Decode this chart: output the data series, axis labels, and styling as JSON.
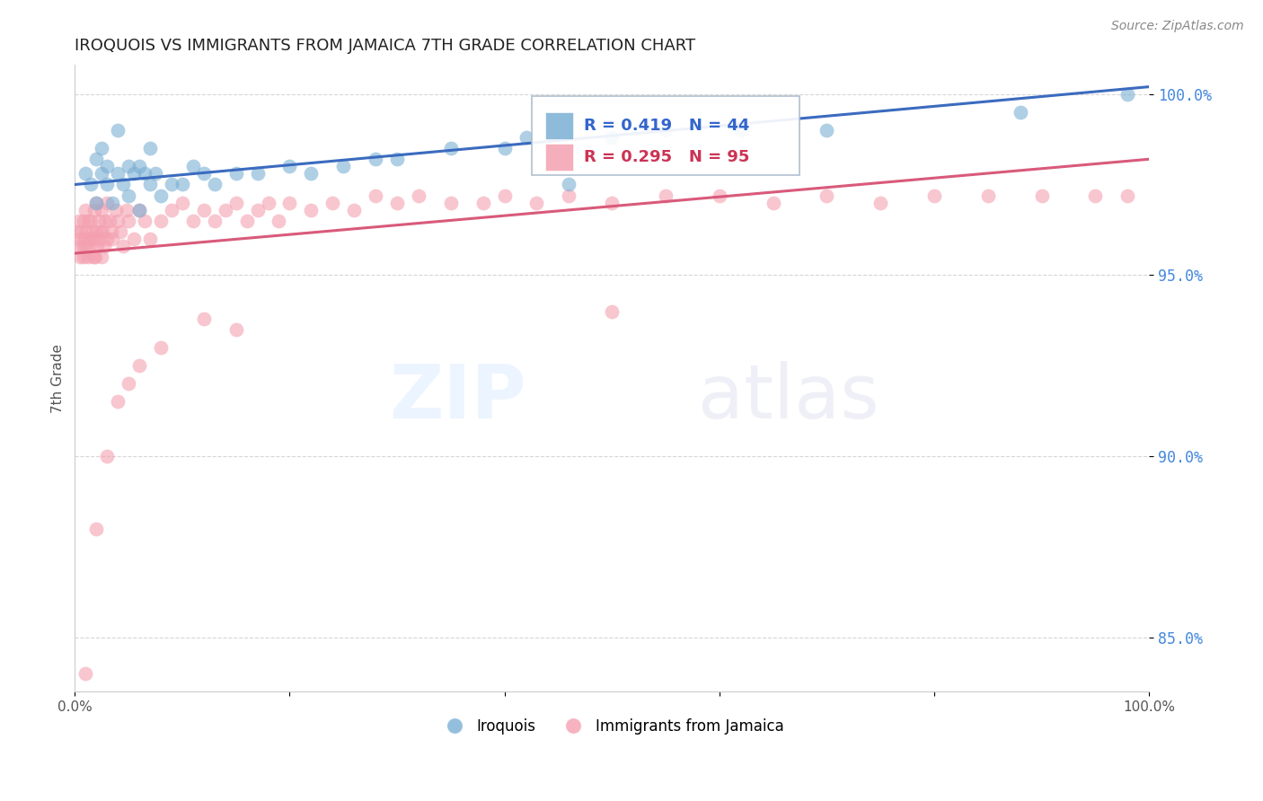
{
  "title": "IROQUOIS VS IMMIGRANTS FROM JAMAICA 7TH GRADE CORRELATION CHART",
  "source": "Source: ZipAtlas.com",
  "ylabel": "7th Grade",
  "xmin": 0.0,
  "xmax": 1.0,
  "ymin": 0.835,
  "ymax": 1.008,
  "yticks": [
    0.85,
    0.9,
    0.95,
    1.0
  ],
  "ytick_labels": [
    "85.0%",
    "90.0%",
    "95.0%",
    "100.0%"
  ],
  "xticks": [
    0.0,
    0.2,
    0.4,
    0.6,
    0.8,
    1.0
  ],
  "xtick_labels": [
    "0.0%",
    "",
    "",
    "",
    "",
    "100.0%"
  ],
  "blue_R": 0.419,
  "blue_N": 44,
  "pink_R": 0.295,
  "pink_N": 95,
  "blue_color": "#7AAFD4",
  "pink_color": "#F4A0B0",
  "blue_line_color": "#3B6BBF",
  "pink_line_color": "#D95A7A",
  "legend_label_blue": "Iroquois",
  "legend_label_pink": "Immigrants from Jamaica",
  "blue_line_x0": 0.0,
  "blue_line_y0": 0.975,
  "blue_line_x1": 1.0,
  "blue_line_y1": 1.002,
  "pink_line_x0": 0.0,
  "pink_line_y0": 0.956,
  "pink_line_x1": 1.0,
  "pink_line_y1": 0.982,
  "blue_scatter_x": [
    0.01,
    0.015,
    0.02,
    0.02,
    0.025,
    0.025,
    0.03,
    0.03,
    0.035,
    0.04,
    0.04,
    0.045,
    0.05,
    0.05,
    0.055,
    0.06,
    0.06,
    0.065,
    0.07,
    0.07,
    0.075,
    0.08,
    0.09,
    0.1,
    0.11,
    0.12,
    0.13,
    0.15,
    0.17,
    0.2,
    0.22,
    0.25,
    0.28,
    0.3,
    0.35,
    0.4,
    0.42,
    0.46,
    0.5,
    0.55,
    0.62,
    0.7,
    0.88,
    0.98
  ],
  "blue_scatter_y": [
    0.978,
    0.975,
    0.982,
    0.97,
    0.985,
    0.978,
    0.975,
    0.98,
    0.97,
    0.978,
    0.99,
    0.975,
    0.98,
    0.972,
    0.978,
    0.968,
    0.98,
    0.978,
    0.975,
    0.985,
    0.978,
    0.972,
    0.975,
    0.975,
    0.98,
    0.978,
    0.975,
    0.978,
    0.978,
    0.98,
    0.978,
    0.98,
    0.982,
    0.982,
    0.985,
    0.985,
    0.988,
    0.975,
    0.988,
    0.99,
    0.99,
    0.99,
    0.995,
    1.0
  ],
  "pink_scatter_x": [
    0.002,
    0.003,
    0.004,
    0.005,
    0.005,
    0.006,
    0.007,
    0.008,
    0.008,
    0.009,
    0.01,
    0.01,
    0.011,
    0.012,
    0.012,
    0.013,
    0.014,
    0.015,
    0.015,
    0.016,
    0.017,
    0.018,
    0.018,
    0.019,
    0.02,
    0.02,
    0.021,
    0.022,
    0.023,
    0.024,
    0.025,
    0.025,
    0.026,
    0.027,
    0.028,
    0.03,
    0.03,
    0.032,
    0.034,
    0.035,
    0.038,
    0.04,
    0.042,
    0.045,
    0.048,
    0.05,
    0.055,
    0.06,
    0.065,
    0.07,
    0.08,
    0.09,
    0.1,
    0.11,
    0.12,
    0.13,
    0.14,
    0.15,
    0.16,
    0.17,
    0.18,
    0.19,
    0.2,
    0.22,
    0.24,
    0.26,
    0.28,
    0.3,
    0.32,
    0.35,
    0.38,
    0.4,
    0.43,
    0.46,
    0.5,
    0.55,
    0.6,
    0.65,
    0.7,
    0.75,
    0.8,
    0.85,
    0.9,
    0.95,
    0.98,
    0.5,
    0.15,
    0.12,
    0.08,
    0.06,
    0.05,
    0.04,
    0.03,
    0.02,
    0.01
  ],
  "pink_scatter_y": [
    0.962,
    0.958,
    0.965,
    0.96,
    0.955,
    0.962,
    0.958,
    0.965,
    0.955,
    0.96,
    0.968,
    0.958,
    0.962,
    0.965,
    0.955,
    0.96,
    0.958,
    0.965,
    0.96,
    0.962,
    0.955,
    0.968,
    0.96,
    0.955,
    0.962,
    0.97,
    0.958,
    0.965,
    0.96,
    0.962,
    0.968,
    0.955,
    0.962,
    0.958,
    0.965,
    0.97,
    0.96,
    0.965,
    0.962,
    0.96,
    0.968,
    0.965,
    0.962,
    0.958,
    0.968,
    0.965,
    0.96,
    0.968,
    0.965,
    0.96,
    0.965,
    0.968,
    0.97,
    0.965,
    0.968,
    0.965,
    0.968,
    0.97,
    0.965,
    0.968,
    0.97,
    0.965,
    0.97,
    0.968,
    0.97,
    0.968,
    0.972,
    0.97,
    0.972,
    0.97,
    0.97,
    0.972,
    0.97,
    0.972,
    0.97,
    0.972,
    0.972,
    0.97,
    0.972,
    0.97,
    0.972,
    0.972,
    0.972,
    0.972,
    0.972,
    0.94,
    0.935,
    0.938,
    0.93,
    0.925,
    0.92,
    0.915,
    0.9,
    0.88,
    0.84
  ]
}
